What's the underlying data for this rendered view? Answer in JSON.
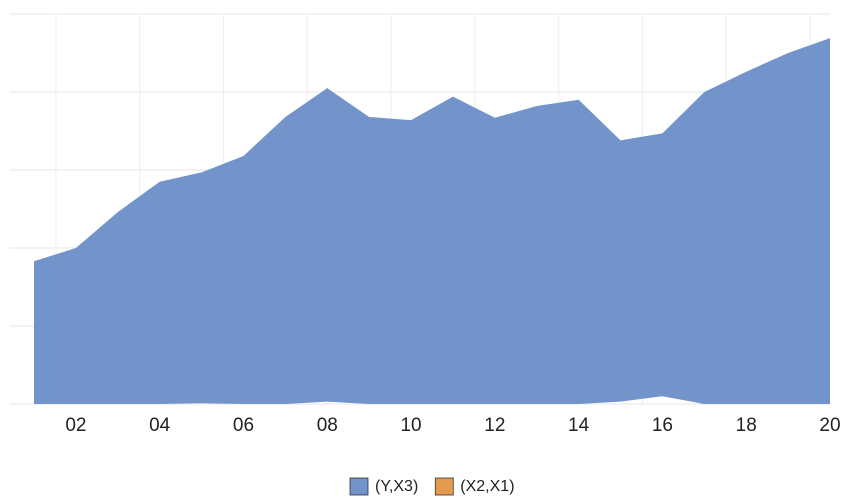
{
  "chart_data": {
    "type": "range_area",
    "x": [
      1,
      2,
      3,
      4,
      5,
      6,
      7,
      8,
      9,
      10,
      11,
      12,
      13,
      14,
      15,
      16,
      17,
      18,
      19,
      20
    ],
    "series": [
      {
        "name": "(Y,X3)",
        "color": "#7294cb",
        "low": [
          0,
          0,
          0,
          0,
          0.01,
          0,
          0,
          0.03,
          0,
          0,
          0,
          0,
          0,
          0,
          0.03,
          0.1,
          0,
          0,
          0,
          0
        ],
        "values": [
          1.83,
          2.0,
          2.46,
          2.85,
          2.97,
          3.18,
          3.68,
          4.05,
          3.68,
          3.64,
          3.94,
          3.67,
          3.82,
          3.9,
          3.38,
          3.47,
          4.0,
          4.26,
          4.5,
          4.69
        ]
      },
      {
        "name": "(X2,X1)",
        "color": "#e39c4f"
      }
    ],
    "xlim": [
      1,
      20
    ],
    "xticks": [
      {
        "value": 2,
        "label": "02"
      },
      {
        "value": 4,
        "label": "04"
      },
      {
        "value": 6,
        "label": "06"
      },
      {
        "value": 8,
        "label": "08"
      },
      10,
      12,
      14,
      16,
      18,
      20
    ],
    "ylim": [
      0,
      5
    ],
    "yticks": [
      0,
      1,
      2,
      3,
      4,
      5
    ],
    "grid": true,
    "legend": "bottom"
  }
}
